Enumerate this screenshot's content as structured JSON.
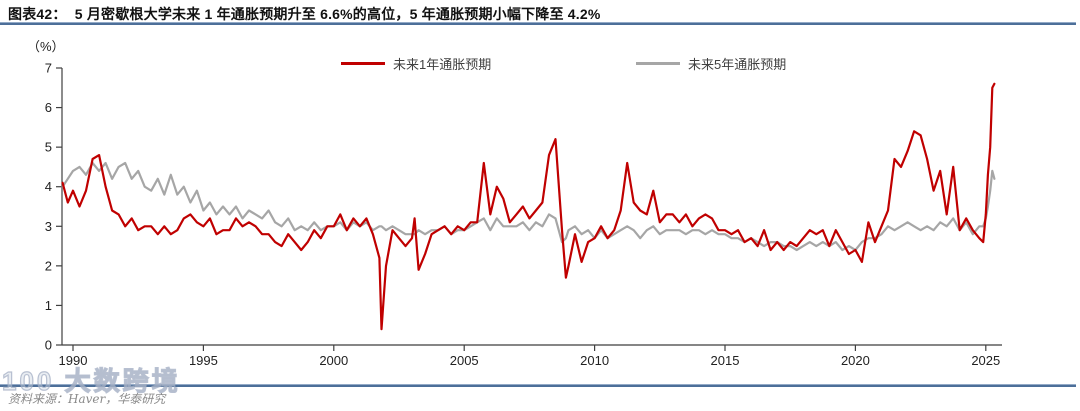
{
  "chart_data": {
    "type": "line",
    "title": "图表42：  5 月密歇根大学未来 1 年通胀预期升至 6.6%的高位，5 年通胀预期小幅下降至 4.2%",
    "unit_label": "（%）",
    "xlabel": "",
    "ylabel": "%",
    "ylim": [
      0,
      7
    ],
    "xlim": [
      1989.5,
      2025.6
    ],
    "y_ticks": [
      0,
      1,
      2,
      3,
      4,
      5,
      6,
      7
    ],
    "x_ticks": [
      1990,
      1995,
      2000,
      2005,
      2010,
      2015,
      2020,
      2025
    ],
    "grid": false,
    "legend_position": "top",
    "x": [
      1989.6,
      1989.8,
      1990.0,
      1990.25,
      1990.5,
      1990.75,
      1991.0,
      1991.25,
      1991.5,
      1991.75,
      1992.0,
      1992.25,
      1992.5,
      1992.75,
      1993.0,
      1993.25,
      1993.5,
      1993.75,
      1994.0,
      1994.25,
      1994.5,
      1994.75,
      1995.0,
      1995.25,
      1995.5,
      1995.75,
      1996.0,
      1996.25,
      1996.5,
      1996.75,
      1997.0,
      1997.25,
      1997.5,
      1997.75,
      1998.0,
      1998.25,
      1998.5,
      1998.75,
      1999.0,
      1999.25,
      1999.5,
      1999.75,
      2000.0,
      2000.25,
      2000.5,
      2000.75,
      2001.0,
      2001.25,
      2001.5,
      2001.75,
      2001.83,
      2002.0,
      2002.25,
      2002.5,
      2002.75,
      2003.0,
      2003.1,
      2003.25,
      2003.5,
      2003.75,
      2004.0,
      2004.25,
      2004.5,
      2004.75,
      2005.0,
      2005.25,
      2005.5,
      2005.75,
      2006.0,
      2006.25,
      2006.5,
      2006.75,
      2007.0,
      2007.25,
      2007.5,
      2007.75,
      2008.0,
      2008.25,
      2008.5,
      2008.75,
      2008.9,
      2009.0,
      2009.25,
      2009.5,
      2009.75,
      2010.0,
      2010.25,
      2010.5,
      2010.75,
      2011.0,
      2011.25,
      2011.5,
      2011.75,
      2012.0,
      2012.25,
      2012.5,
      2012.75,
      2013.0,
      2013.25,
      2013.5,
      2013.75,
      2014.0,
      2014.25,
      2014.5,
      2014.75,
      2015.0,
      2015.25,
      2015.5,
      2015.75,
      2016.0,
      2016.25,
      2016.5,
      2016.75,
      2017.0,
      2017.25,
      2017.5,
      2017.75,
      2018.0,
      2018.25,
      2018.5,
      2018.75,
      2019.0,
      2019.25,
      2019.5,
      2019.75,
      2020.0,
      2020.25,
      2020.5,
      2020.75,
      2021.0,
      2021.25,
      2021.5,
      2021.75,
      2022.0,
      2022.25,
      2022.5,
      2022.75,
      2023.0,
      2023.25,
      2023.5,
      2023.75,
      2024.0,
      2024.25,
      2024.5,
      2024.75,
      2024.9,
      2025.0,
      2025.08,
      2025.17,
      2025.25,
      2025.33
    ],
    "series": [
      {
        "name": "未来1年通胀预期",
        "color": "#c00000",
        "latest_value": 6.6,
        "values": [
          4.1,
          3.6,
          3.9,
          3.5,
          3.9,
          4.7,
          4.8,
          4.0,
          3.4,
          3.3,
          3.0,
          3.2,
          2.9,
          3.0,
          3.0,
          2.8,
          3.0,
          2.8,
          2.9,
          3.2,
          3.3,
          3.1,
          3.0,
          3.2,
          2.8,
          2.9,
          2.9,
          3.2,
          3.0,
          3.1,
          3.0,
          2.8,
          2.8,
          2.6,
          2.5,
          2.8,
          2.6,
          2.4,
          2.6,
          2.9,
          2.7,
          3.0,
          3.0,
          3.3,
          2.9,
          3.2,
          3.0,
          3.2,
          2.8,
          2.2,
          0.4,
          2.0,
          2.9,
          2.7,
          2.5,
          2.7,
          3.2,
          1.9,
          2.3,
          2.8,
          2.9,
          3.0,
          2.8,
          3.0,
          2.9,
          3.1,
          3.1,
          4.6,
          3.3,
          4.0,
          3.7,
          3.1,
          3.3,
          3.5,
          3.2,
          3.4,
          3.6,
          4.8,
          5.2,
          2.9,
          1.7,
          2.0,
          2.8,
          2.1,
          2.6,
          2.7,
          3.0,
          2.7,
          2.9,
          3.4,
          4.6,
          3.6,
          3.4,
          3.3,
          3.9,
          3.1,
          3.3,
          3.3,
          3.1,
          3.3,
          3.0,
          3.2,
          3.3,
          3.2,
          2.9,
          2.9,
          2.8,
          2.9,
          2.6,
          2.7,
          2.5,
          2.9,
          2.4,
          2.6,
          2.4,
          2.6,
          2.5,
          2.7,
          2.9,
          2.8,
          2.9,
          2.5,
          2.9,
          2.6,
          2.3,
          2.4,
          2.1,
          3.1,
          2.6,
          3.0,
          3.4,
          4.7,
          4.5,
          4.9,
          5.4,
          5.3,
          4.7,
          3.9,
          4.4,
          3.3,
          4.5,
          2.9,
          3.2,
          2.9,
          2.7,
          2.6,
          3.3,
          4.3,
          5.0,
          6.5,
          6.6
        ]
      },
      {
        "name": "未来5年通胀预期",
        "color": "#a6a6a6",
        "latest_value": 4.2,
        "values": [
          4.0,
          4.2,
          4.4,
          4.5,
          4.3,
          4.6,
          4.4,
          4.6,
          4.2,
          4.5,
          4.6,
          4.2,
          4.4,
          4.0,
          3.9,
          4.2,
          3.8,
          4.3,
          3.8,
          4.0,
          3.6,
          3.9,
          3.4,
          3.6,
          3.3,
          3.5,
          3.3,
          3.5,
          3.2,
          3.4,
          3.3,
          3.2,
          3.4,
          3.1,
          3.0,
          3.2,
          2.9,
          3.0,
          2.9,
          3.1,
          2.9,
          3.0,
          3.0,
          3.1,
          2.9,
          3.1,
          3.0,
          3.1,
          2.9,
          3.0,
          3.0,
          2.9,
          3.0,
          2.9,
          2.8,
          2.8,
          2.8,
          2.9,
          2.8,
          2.9,
          2.9,
          3.0,
          2.8,
          2.9,
          2.9,
          3.0,
          3.1,
          3.2,
          2.9,
          3.2,
          3.0,
          3.0,
          3.0,
          3.1,
          2.9,
          3.1,
          3.0,
          3.3,
          3.2,
          2.6,
          2.7,
          2.9,
          3.0,
          2.8,
          2.9,
          2.7,
          2.9,
          2.7,
          2.8,
          2.9,
          3.0,
          2.9,
          2.7,
          2.9,
          3.0,
          2.8,
          2.9,
          2.9,
          2.9,
          2.8,
          2.9,
          2.9,
          2.8,
          2.9,
          2.8,
          2.8,
          2.7,
          2.7,
          2.6,
          2.7,
          2.6,
          2.5,
          2.6,
          2.6,
          2.5,
          2.5,
          2.4,
          2.5,
          2.6,
          2.5,
          2.6,
          2.5,
          2.6,
          2.4,
          2.5,
          2.4,
          2.6,
          2.7,
          2.7,
          2.8,
          3.0,
          2.9,
          3.0,
          3.1,
          3.0,
          2.9,
          3.0,
          2.9,
          3.1,
          3.0,
          3.2,
          2.9,
          3.1,
          2.8,
          3.0,
          3.0,
          3.2,
          3.5,
          3.9,
          4.4,
          4.2
        ]
      }
    ]
  },
  "footer": {
    "source": "资料来源：Haver，华泰研究",
    "watermark": "100 大数跨境"
  },
  "colors": {
    "rule_blue": "#4d6f99",
    "axis": "#3f3f3f",
    "series_1y": "#c00000",
    "series_5y": "#a6a6a6"
  }
}
